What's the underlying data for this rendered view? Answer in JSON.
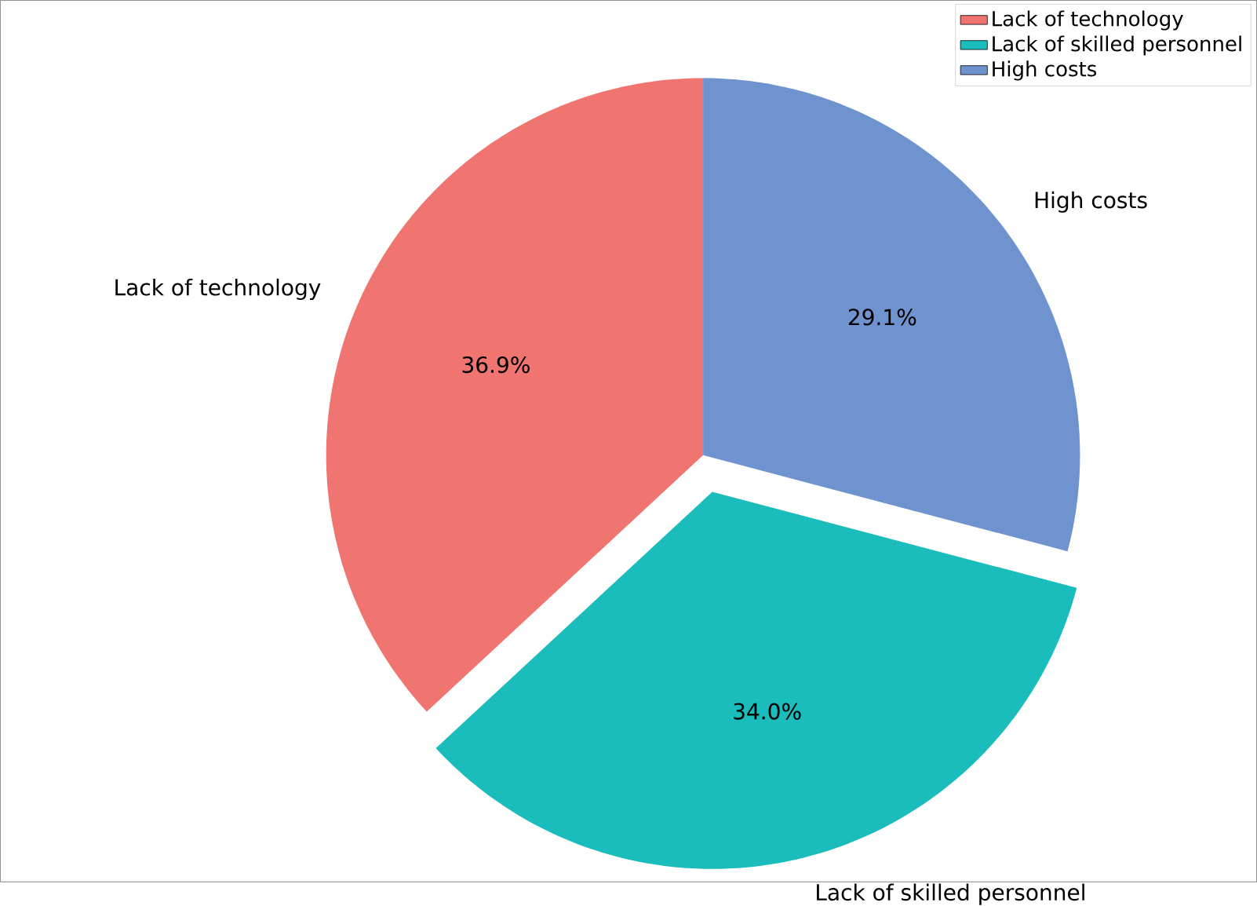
{
  "chart_data": {
    "type": "pie",
    "categories": [
      "Lack of technology",
      "Lack of skilled personnel",
      "High costs"
    ],
    "values": [
      36.9,
      34.0,
      29.1
    ],
    "colors": [
      "#f07470",
      "#1abcbc",
      "#6f93cf"
    ],
    "value_labels": [
      "36.9%",
      "34.0%",
      "29.1%"
    ],
    "legend": "top right"
  }
}
